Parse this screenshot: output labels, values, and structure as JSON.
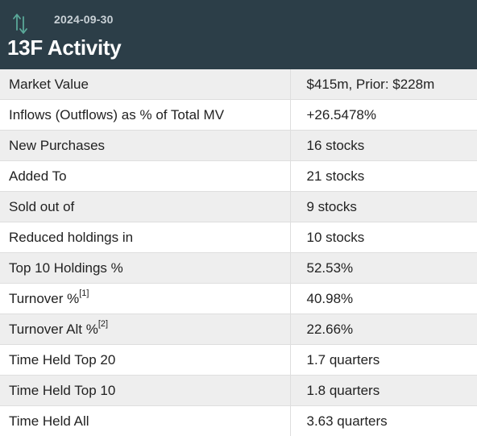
{
  "header": {
    "date": "2024-09-30",
    "title": "13F Activity",
    "icon": "up-down-arrows-icon",
    "icon_color": "#5aa899",
    "background": "#2c3e48"
  },
  "rows": [
    {
      "label": "Market Value",
      "value": "$415m, Prior: $228m"
    },
    {
      "label": "Inflows (Outflows) as % of Total MV",
      "value": "+26.5478%",
      "value_color": "#2e8b2e"
    },
    {
      "label": "New Purchases",
      "value": "16 stocks"
    },
    {
      "label": "Added To",
      "value": "21 stocks"
    },
    {
      "label": "Sold out of",
      "value": "9 stocks"
    },
    {
      "label": "Reduced holdings in",
      "value": "10 stocks"
    },
    {
      "label": "Top 10 Holdings %",
      "value": "52.53%"
    },
    {
      "label": "Turnover %",
      "footnote": "[1]",
      "value": "40.98%"
    },
    {
      "label": "Turnover Alt %",
      "footnote": "[2]",
      "value": "22.66%"
    },
    {
      "label": "Time Held Top 20",
      "value": "1.7 quarters"
    },
    {
      "label": "Time Held Top 10",
      "value": "1.8 quarters"
    },
    {
      "label": "Time Held All",
      "value": "3.63 quarters"
    }
  ]
}
